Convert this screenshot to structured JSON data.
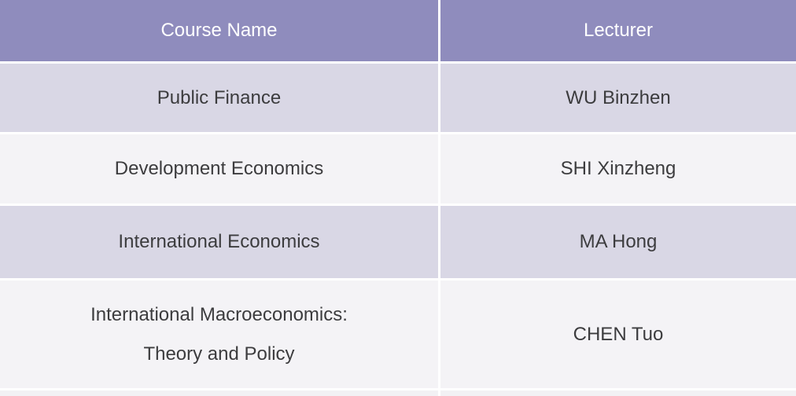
{
  "chart_data": {
    "type": "table",
    "columns": [
      "Course Name",
      "Lecturer"
    ],
    "rows": [
      [
        "Public Finance",
        "WU Binzhen"
      ],
      [
        "Development Economics",
        "SHI Xinzheng"
      ],
      [
        "International Economics",
        "MA Hong"
      ],
      [
        "International Macroeconomics:\nTheory and Policy",
        "CHEN Tuo"
      ]
    ],
    "layout_hints": {
      "header_position": "top",
      "row_striping": "alternating",
      "cell_text_align": "center"
    }
  },
  "colors": {
    "header_bg": "#8f8cbd",
    "header_text": "#ffffff",
    "row_alt_bg": "#d9d7e5",
    "row_plain_bg": "#f4f3f6",
    "divider": "#ffffff",
    "body_text": "#3c3c3e",
    "partial_next_row_bg": "#f2f1f4"
  }
}
